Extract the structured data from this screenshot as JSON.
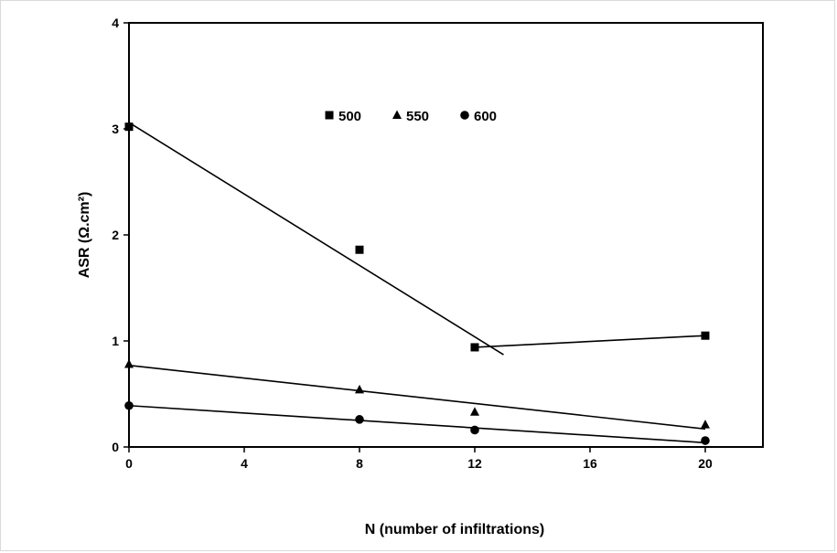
{
  "chart_data": {
    "type": "scatter",
    "xlabel": "N (number of infiltrations)",
    "ylabel": "ASR (Ω.cm²)",
    "xlim": [
      0,
      22
    ],
    "ylim": [
      0,
      4
    ],
    "xticks": [
      0,
      4,
      8,
      12,
      16,
      20
    ],
    "yticks": [
      0,
      1,
      2,
      3,
      4
    ],
    "grid": false,
    "legend_position": "top-center",
    "series": [
      {
        "name": "500",
        "marker": "square",
        "color": "#000000",
        "x": [
          0,
          8,
          12,
          20
        ],
        "y": [
          3.02,
          1.86,
          0.94,
          1.05
        ],
        "fit_lines": [
          {
            "x": [
              0,
              13
            ],
            "y": [
              3.06,
              0.87
            ]
          },
          {
            "x": [
              12,
              20
            ],
            "y": [
              0.94,
              1.05
            ]
          }
        ]
      },
      {
        "name": "550",
        "marker": "triangle",
        "color": "#000000",
        "x": [
          0,
          8,
          12,
          20
        ],
        "y": [
          0.78,
          0.54,
          0.33,
          0.21
        ],
        "fit_lines": [
          {
            "x": [
              0,
              20
            ],
            "y": [
              0.77,
              0.17
            ]
          }
        ]
      },
      {
        "name": "600",
        "marker": "circle",
        "color": "#000000",
        "x": [
          0,
          8,
          12,
          20
        ],
        "y": [
          0.39,
          0.26,
          0.16,
          0.06
        ],
        "fit_lines": [
          {
            "x": [
              0,
              20
            ],
            "y": [
              0.39,
              0.04
            ]
          }
        ]
      }
    ]
  }
}
